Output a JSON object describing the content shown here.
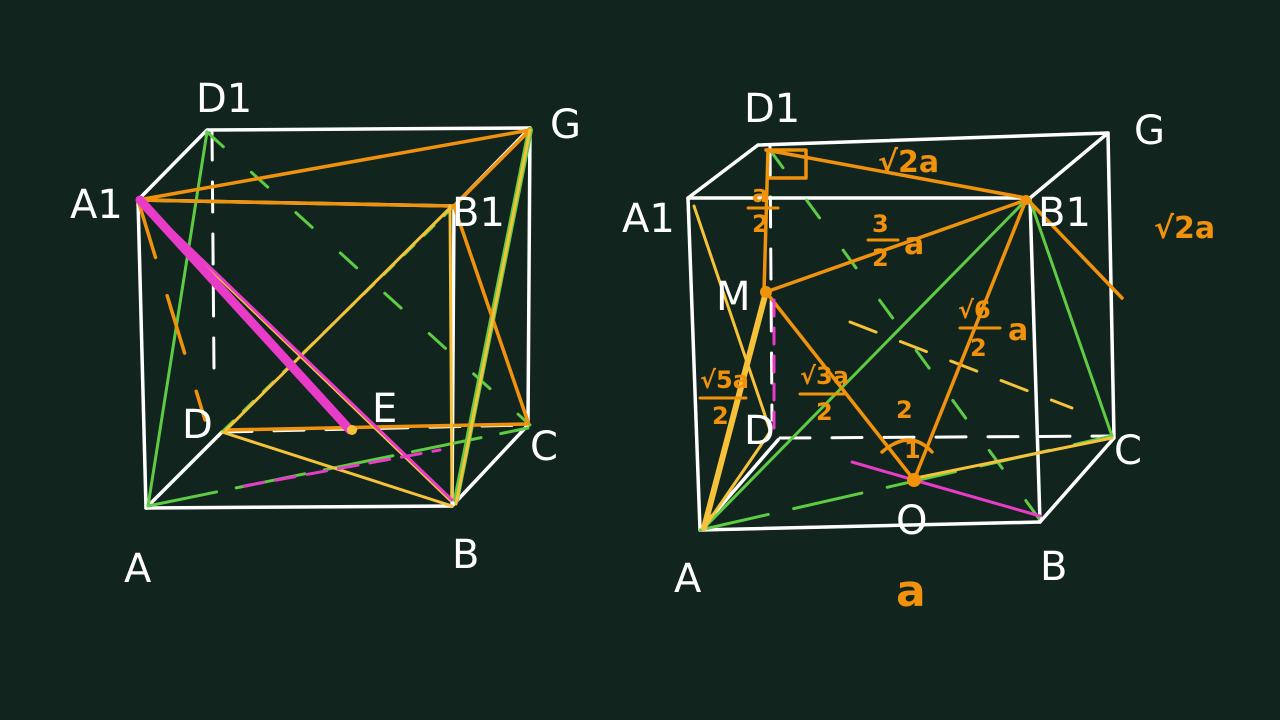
{
  "colors": {
    "background": "#11251e",
    "cube_edges": "#ffffff",
    "orange": "#f0920c",
    "yellow": "#f5c23a",
    "green": "#5ecb45",
    "magenta": "#e83cc8"
  },
  "left_cube": {
    "labels": {
      "D1": "D1",
      "C1": "G",
      "A1": "A1",
      "B1": "B1",
      "D": "D",
      "E": "E",
      "C": "C",
      "A": "A",
      "B": "B"
    }
  },
  "right_cube": {
    "labels": {
      "D1": "D1",
      "C1": "G",
      "A1": "A1",
      "B1": "B1",
      "M": "M",
      "D": "D",
      "C": "C",
      "A": "A",
      "B": "B",
      "O": "O"
    },
    "annotations": {
      "d1b1": "√2a",
      "side_b1": "√2a",
      "mb1_num": "3",
      "mb1_den": "2",
      "mb1_a": "a",
      "am_num": "√5a",
      "am_den": "2",
      "mo_num": "√3a",
      "mo_den": "2",
      "ob1_num": "√6",
      "ob1_a": "a",
      "ob1_den": "2",
      "dm_num": "a",
      "dm_den": "2",
      "angle_top": "2",
      "angle_bottom": "1",
      "bottom_a": "a"
    }
  }
}
